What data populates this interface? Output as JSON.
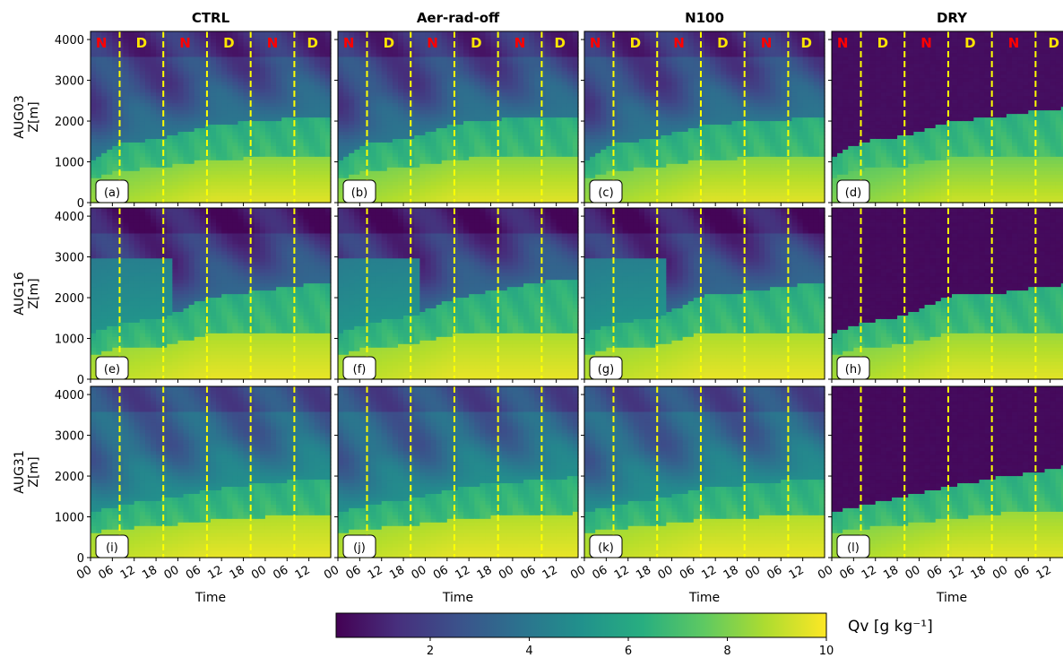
{
  "chart_data": {
    "type": "heatmap",
    "columns": [
      "CTRL",
      "Aer-rad-off",
      "N100",
      "DRY"
    ],
    "rows": [
      "AUG03",
      "AUG16",
      "AUG31"
    ],
    "ylabel_suffix": "Z[m]",
    "xlabel": "Time",
    "panel_labels": [
      "(a)",
      "(b)",
      "(c)",
      "(d)",
      "(e)",
      "(f)",
      "(g)",
      "(h)",
      "(i)",
      "(j)",
      "(k)",
      "(l)"
    ],
    "y_ticks": [
      "0",
      "1000",
      "2000",
      "3000",
      "4000"
    ],
    "y_tick_values": [
      0,
      1000,
      2000,
      3000,
      4000
    ],
    "ylim": [
      0,
      4200
    ],
    "x_ticks": [
      "00",
      "06",
      "12",
      "18",
      "00",
      "06",
      "12",
      "18",
      "00",
      "06",
      "12"
    ],
    "x_tick_hours": [
      0,
      6,
      12,
      18,
      24,
      30,
      36,
      42,
      48,
      54,
      60
    ],
    "xlim_hours": [
      0,
      66
    ],
    "day_night_boundaries_hours": [
      8,
      20,
      32,
      44,
      56
    ],
    "day_night_labels": [
      "N",
      "D",
      "N",
      "D",
      "N",
      "D"
    ],
    "colorbar": {
      "label": "Qv [g kg⁻¹]",
      "ticks": [
        "2",
        "4",
        "6",
        "8",
        "10"
      ],
      "tick_values": [
        2,
        4,
        6,
        8,
        10
      ],
      "range": [
        0.1,
        10
      ],
      "colormap": "viridis"
    },
    "panels": [
      {
        "label": "(a)",
        "mixed_top_pts": [
          [
            0,
            1050
          ],
          [
            8,
            1450
          ],
          [
            20,
            1600
          ],
          [
            32,
            1900
          ],
          [
            44,
            2000
          ],
          [
            56,
            2080
          ],
          [
            66,
            2100
          ]
        ],
        "moist_layer": null,
        "upper_qv": 2.2,
        "surface_qv": [
          7.5,
          9.6
        ],
        "dry": false
      },
      {
        "label": "(b)",
        "mixed_top_pts": [
          [
            0,
            1050
          ],
          [
            8,
            1450
          ],
          [
            20,
            1600
          ],
          [
            32,
            1950
          ],
          [
            44,
            2050
          ],
          [
            56,
            2100
          ],
          [
            66,
            2100
          ]
        ],
        "moist_layer": null,
        "upper_qv": 2.2,
        "surface_qv": [
          7.5,
          9.6
        ],
        "dry": false
      },
      {
        "label": "(c)",
        "mixed_top_pts": [
          [
            0,
            1050
          ],
          [
            8,
            1450
          ],
          [
            20,
            1600
          ],
          [
            32,
            1900
          ],
          [
            44,
            2000
          ],
          [
            56,
            2050
          ],
          [
            66,
            2100
          ]
        ],
        "moist_layer": null,
        "upper_qv": 2.2,
        "surface_qv": [
          7.5,
          9.6
        ],
        "dry": false
      },
      {
        "label": "(d)",
        "mixed_top_pts": [
          [
            0,
            1100
          ],
          [
            8,
            1500
          ],
          [
            20,
            1650
          ],
          [
            32,
            2000
          ],
          [
            44,
            2100
          ],
          [
            56,
            2250
          ],
          [
            66,
            2350
          ]
        ],
        "moist_layer": null,
        "upper_qv": 0.4,
        "surface_qv": [
          7.0,
          9.3
        ],
        "dry": true
      },
      {
        "label": "(e)",
        "mixed_top_pts": [
          [
            0,
            1100
          ],
          [
            8,
            1400
          ],
          [
            20,
            1500
          ],
          [
            32,
            2000
          ],
          [
            44,
            2150
          ],
          [
            56,
            2300
          ],
          [
            66,
            2400
          ]
        ],
        "moist_layer": {
          "top": 3000,
          "end_hour": 22
        },
        "upper_qv": 1.6,
        "surface_qv": [
          8.2,
          9.7
        ],
        "dry": false
      },
      {
        "label": "(f)",
        "mixed_top_pts": [
          [
            0,
            1100
          ],
          [
            8,
            1400
          ],
          [
            20,
            1550
          ],
          [
            32,
            2000
          ],
          [
            44,
            2200
          ],
          [
            56,
            2400
          ],
          [
            66,
            2500
          ]
        ],
        "moist_layer": {
          "top": 3000,
          "end_hour": 22
        },
        "upper_qv": 1.6,
        "surface_qv": [
          8.2,
          9.7
        ],
        "dry": false
      },
      {
        "label": "(g)",
        "mixed_top_pts": [
          [
            0,
            1100
          ],
          [
            8,
            1400
          ],
          [
            20,
            1500
          ],
          [
            32,
            2050
          ],
          [
            44,
            2150
          ],
          [
            56,
            2300
          ],
          [
            66,
            2400
          ]
        ],
        "moist_layer": {
          "top": 3000,
          "end_hour": 22
        },
        "upper_qv": 1.6,
        "surface_qv": [
          8.2,
          9.7
        ],
        "dry": false
      },
      {
        "label": "(h)",
        "mixed_top_pts": [
          [
            0,
            1100
          ],
          [
            8,
            1400
          ],
          [
            20,
            1550
          ],
          [
            32,
            2050
          ],
          [
            44,
            2100
          ],
          [
            56,
            2250
          ],
          [
            66,
            2350
          ]
        ],
        "moist_layer": null,
        "upper_qv": 0.3,
        "surface_qv": [
          7.8,
          9.6
        ],
        "dry": true
      },
      {
        "label": "(i)",
        "mixed_top_pts": [
          [
            0,
            1100
          ],
          [
            8,
            1300
          ],
          [
            20,
            1450
          ],
          [
            32,
            1650
          ],
          [
            44,
            1800
          ],
          [
            56,
            1900
          ],
          [
            66,
            1950
          ]
        ],
        "moist_layer": null,
        "upper_qv": 3.2,
        "surface_qv": [
          8.3,
          9.7
        ],
        "dry": false
      },
      {
        "label": "(j)",
        "mixed_top_pts": [
          [
            0,
            1100
          ],
          [
            8,
            1300
          ],
          [
            20,
            1450
          ],
          [
            32,
            1700
          ],
          [
            44,
            1850
          ],
          [
            56,
            1900
          ],
          [
            66,
            2000
          ]
        ],
        "moist_layer": null,
        "upper_qv": 3.2,
        "surface_qv": [
          8.3,
          9.7
        ],
        "dry": false
      },
      {
        "label": "(k)",
        "mixed_top_pts": [
          [
            0,
            1100
          ],
          [
            8,
            1300
          ],
          [
            20,
            1450
          ],
          [
            32,
            1700
          ],
          [
            44,
            1800
          ],
          [
            56,
            1900
          ],
          [
            66,
            1950
          ]
        ],
        "moist_layer": null,
        "upper_qv": 3.2,
        "surface_qv": [
          8.3,
          9.7
        ],
        "dry": false
      },
      {
        "label": "(l)",
        "mixed_top_pts": [
          [
            0,
            1100
          ],
          [
            8,
            1300
          ],
          [
            20,
            1500
          ],
          [
            32,
            1750
          ],
          [
            44,
            1950
          ],
          [
            56,
            2100
          ],
          [
            66,
            2300
          ]
        ],
        "moist_layer": null,
        "upper_qv": 0.3,
        "surface_qv": [
          7.8,
          9.6
        ],
        "dry": true
      }
    ],
    "colors": {
      "boundary": "#ffff00",
      "night_label": "#ff0000",
      "day_label": "#ffe500"
    }
  }
}
